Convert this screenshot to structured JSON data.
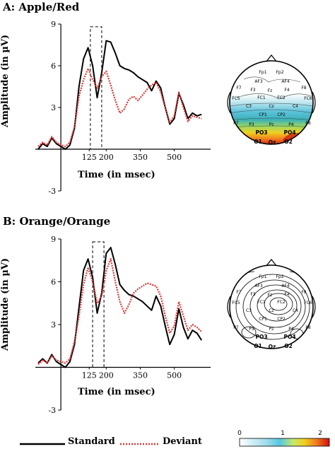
{
  "chart_data": [
    {
      "type": "line",
      "title": "A: Apple/Red",
      "xlabel": "Time (in msec)",
      "ylabel": "Amplitude (in µV)",
      "xlim": [
        -100,
        660
      ],
      "ylim": [
        -3,
        9
      ],
      "xticks": [
        125,
        200,
        350,
        500
      ],
      "yticks": [
        -3,
        3,
        6,
        9
      ],
      "window_ms": [
        130,
        180
      ],
      "series": [
        {
          "name": "Standard",
          "color": "#000000",
          "style": "solid",
          "x": [
            -100,
            -80,
            -60,
            -40,
            -20,
            0,
            20,
            40,
            60,
            80,
            100,
            120,
            140,
            160,
            180,
            200,
            220,
            240,
            260,
            280,
            300,
            320,
            340,
            360,
            380,
            400,
            420,
            440,
            460,
            480,
            500,
            520,
            540,
            560,
            580,
            600,
            620
          ],
          "y": [
            0.0,
            0.4,
            0.2,
            0.8,
            0.4,
            0.2,
            0.0,
            0.3,
            1.5,
            4.5,
            6.5,
            7.3,
            6.0,
            3.7,
            5.5,
            7.8,
            7.7,
            6.9,
            6.0,
            5.8,
            5.7,
            5.5,
            5.2,
            5.0,
            4.8,
            4.2,
            4.9,
            4.4,
            3.0,
            1.8,
            2.2,
            4.0,
            3.2,
            2.2,
            2.6,
            2.4,
            2.5
          ]
        },
        {
          "name": "Deviant",
          "color": "#d93a3a",
          "style": "dotted",
          "x": [
            -100,
            -80,
            -60,
            -40,
            -20,
            0,
            20,
            40,
            60,
            80,
            100,
            120,
            140,
            160,
            180,
            200,
            220,
            240,
            260,
            280,
            300,
            320,
            340,
            360,
            380,
            400,
            420,
            440,
            460,
            480,
            500,
            520,
            540,
            560,
            580,
            600,
            620
          ],
          "y": [
            0.2,
            0.5,
            0.3,
            0.9,
            0.5,
            0.3,
            0.2,
            0.5,
            1.6,
            3.8,
            5.0,
            5.8,
            5.0,
            4.4,
            5.2,
            5.6,
            4.6,
            3.5,
            2.6,
            2.9,
            3.6,
            3.8,
            3.5,
            3.9,
            4.3,
            4.6,
            4.8,
            4.1,
            3.0,
            1.9,
            2.4,
            4.1,
            3.0,
            2.0,
            2.4,
            2.3,
            2.2
          ]
        }
      ]
    },
    {
      "type": "line",
      "title": "B: Orange/Orange",
      "xlabel": "Time (in msec)",
      "ylabel": "Amplitude (in µV)",
      "xlim": [
        -100,
        660
      ],
      "ylim": [
        -3,
        9
      ],
      "xticks": [
        125,
        200,
        350,
        500
      ],
      "yticks": [
        -3,
        3,
        6,
        9
      ],
      "window_ms": [
        140,
        190
      ],
      "series": [
        {
          "name": "Standard",
          "color": "#000000",
          "style": "solid",
          "x": [
            -100,
            -80,
            -60,
            -40,
            -20,
            0,
            20,
            40,
            60,
            80,
            100,
            120,
            140,
            160,
            180,
            200,
            220,
            240,
            260,
            280,
            300,
            320,
            340,
            360,
            380,
            400,
            420,
            440,
            460,
            480,
            500,
            520,
            540,
            560,
            580,
            600,
            620
          ],
          "y": [
            0.3,
            0.6,
            0.3,
            0.9,
            0.4,
            0.2,
            0.0,
            0.4,
            1.6,
            4.2,
            6.8,
            7.6,
            6.3,
            3.8,
            5.2,
            8.0,
            8.4,
            7.2,
            5.8,
            5.4,
            5.1,
            5.0,
            4.8,
            4.6,
            4.3,
            4.0,
            5.0,
            4.3,
            2.9,
            1.6,
            2.3,
            4.1,
            2.8,
            2.0,
            2.6,
            2.4,
            1.9
          ]
        },
        {
          "name": "Deviant",
          "color": "#d93a3a",
          "style": "dotted",
          "x": [
            -100,
            -80,
            -60,
            -40,
            -20,
            0,
            20,
            40,
            60,
            80,
            100,
            120,
            140,
            160,
            180,
            200,
            220,
            240,
            260,
            280,
            300,
            320,
            340,
            360,
            380,
            400,
            420,
            440,
            460,
            480,
            500,
            520,
            540,
            560,
            580,
            600,
            620
          ],
          "y": [
            0.2,
            0.5,
            0.3,
            0.8,
            0.5,
            0.4,
            0.3,
            0.6,
            1.8,
            3.6,
            5.8,
            7.0,
            6.0,
            4.5,
            5.0,
            6.8,
            7.6,
            6.0,
            4.6,
            3.8,
            4.4,
            5.2,
            5.5,
            5.7,
            5.9,
            5.8,
            5.7,
            5.0,
            3.6,
            2.4,
            2.9,
            4.6,
            3.6,
            2.6,
            3.0,
            2.8,
            2.5
          ]
        }
      ]
    }
  ],
  "topomaps": [
    {
      "mode": "color",
      "labels": [
        "Fp1",
        "Fp2",
        "AF3",
        "AF4",
        "F7",
        "F3",
        "Fz",
        "F4",
        "F8",
        "FC5",
        "FC1",
        "FC2",
        "FC6",
        "C3",
        "Cz",
        "C4",
        "CP1",
        "CP2",
        "P7",
        "P3",
        "Pz",
        "P4",
        "P8",
        "PO3",
        "PO4",
        "O1",
        "Oz",
        "O2"
      ]
    },
    {
      "mode": "contour",
      "labels": [
        "Fp1",
        "Fp2",
        "AF3",
        "AF4",
        "F7",
        "F3",
        "Fz",
        "F4",
        "F8",
        "FC5",
        "FC1",
        "FC2",
        "FC6",
        "C3",
        "Cz",
        "C4",
        "CP1",
        "CP2",
        "P7",
        "P3",
        "Pz",
        "P4",
        "P8",
        "PO3",
        "PO4",
        "O1",
        "Oz",
        "O2"
      ]
    }
  ],
  "legend": {
    "items": [
      {
        "name": "Standard",
        "color": "#000000",
        "style": "solid"
      },
      {
        "name": "Deviant",
        "color": "#d93a3a",
        "style": "dotted"
      }
    ]
  },
  "colorbar": {
    "ticks": [
      "0",
      "1",
      "2"
    ],
    "stops": [
      "#ffffff",
      "#55c8e0",
      "#c9e86a",
      "#f0d020",
      "#f08020",
      "#d01010"
    ]
  }
}
